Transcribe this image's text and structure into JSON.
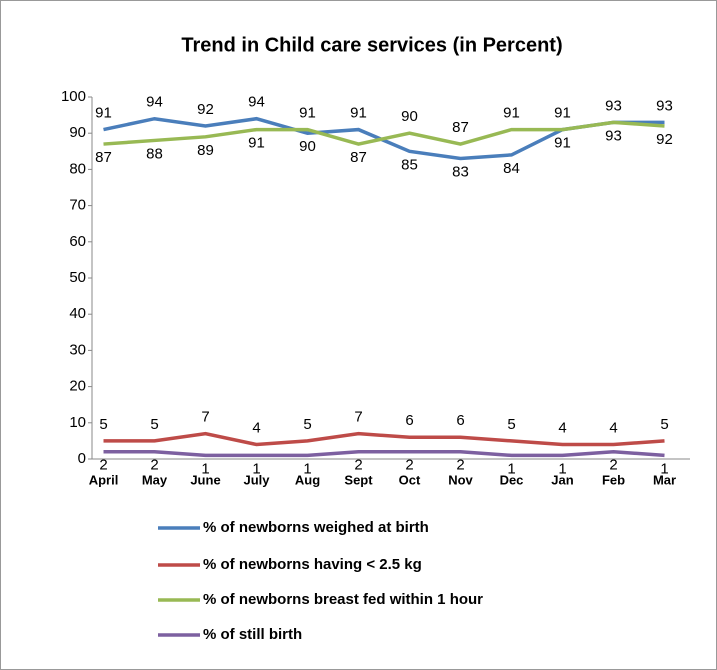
{
  "chart_data": {
    "type": "line",
    "title": "Trend in Child care services  (in Percent)",
    "categories": [
      "April",
      "May",
      "June",
      "July",
      "Aug",
      "Sept",
      "Oct",
      "Nov",
      "Dec",
      "Jan",
      "Feb",
      "Mar"
    ],
    "series": [
      {
        "name": "% of newborns weighed at birth",
        "color": "#4a7ebb",
        "values": [
          91,
          94,
          92,
          94,
          90,
          91,
          85,
          83,
          84,
          91,
          93,
          93
        ]
      },
      {
        "name": "% of newborns having < 2.5 kg",
        "color": "#be4b48",
        "values": [
          5,
          5,
          7,
          4,
          5,
          7,
          6,
          6,
          5,
          4,
          4,
          5
        ]
      },
      {
        "name": "% of newborns breast fed within 1 hour",
        "color": "#98b954",
        "values": [
          87,
          88,
          89,
          91,
          91,
          87,
          90,
          87,
          91,
          91,
          93,
          92
        ]
      },
      {
        "name": "% of still birth",
        "color": "#7d60a0",
        "values": [
          2,
          2,
          1,
          1,
          1,
          2,
          2,
          2,
          1,
          1,
          2,
          1
        ]
      }
    ],
    "ylim": [
      0,
      100
    ],
    "yticks": [
      0,
      10,
      20,
      30,
      40,
      50,
      60,
      70,
      80,
      90,
      100
    ],
    "legend": "bottom"
  }
}
